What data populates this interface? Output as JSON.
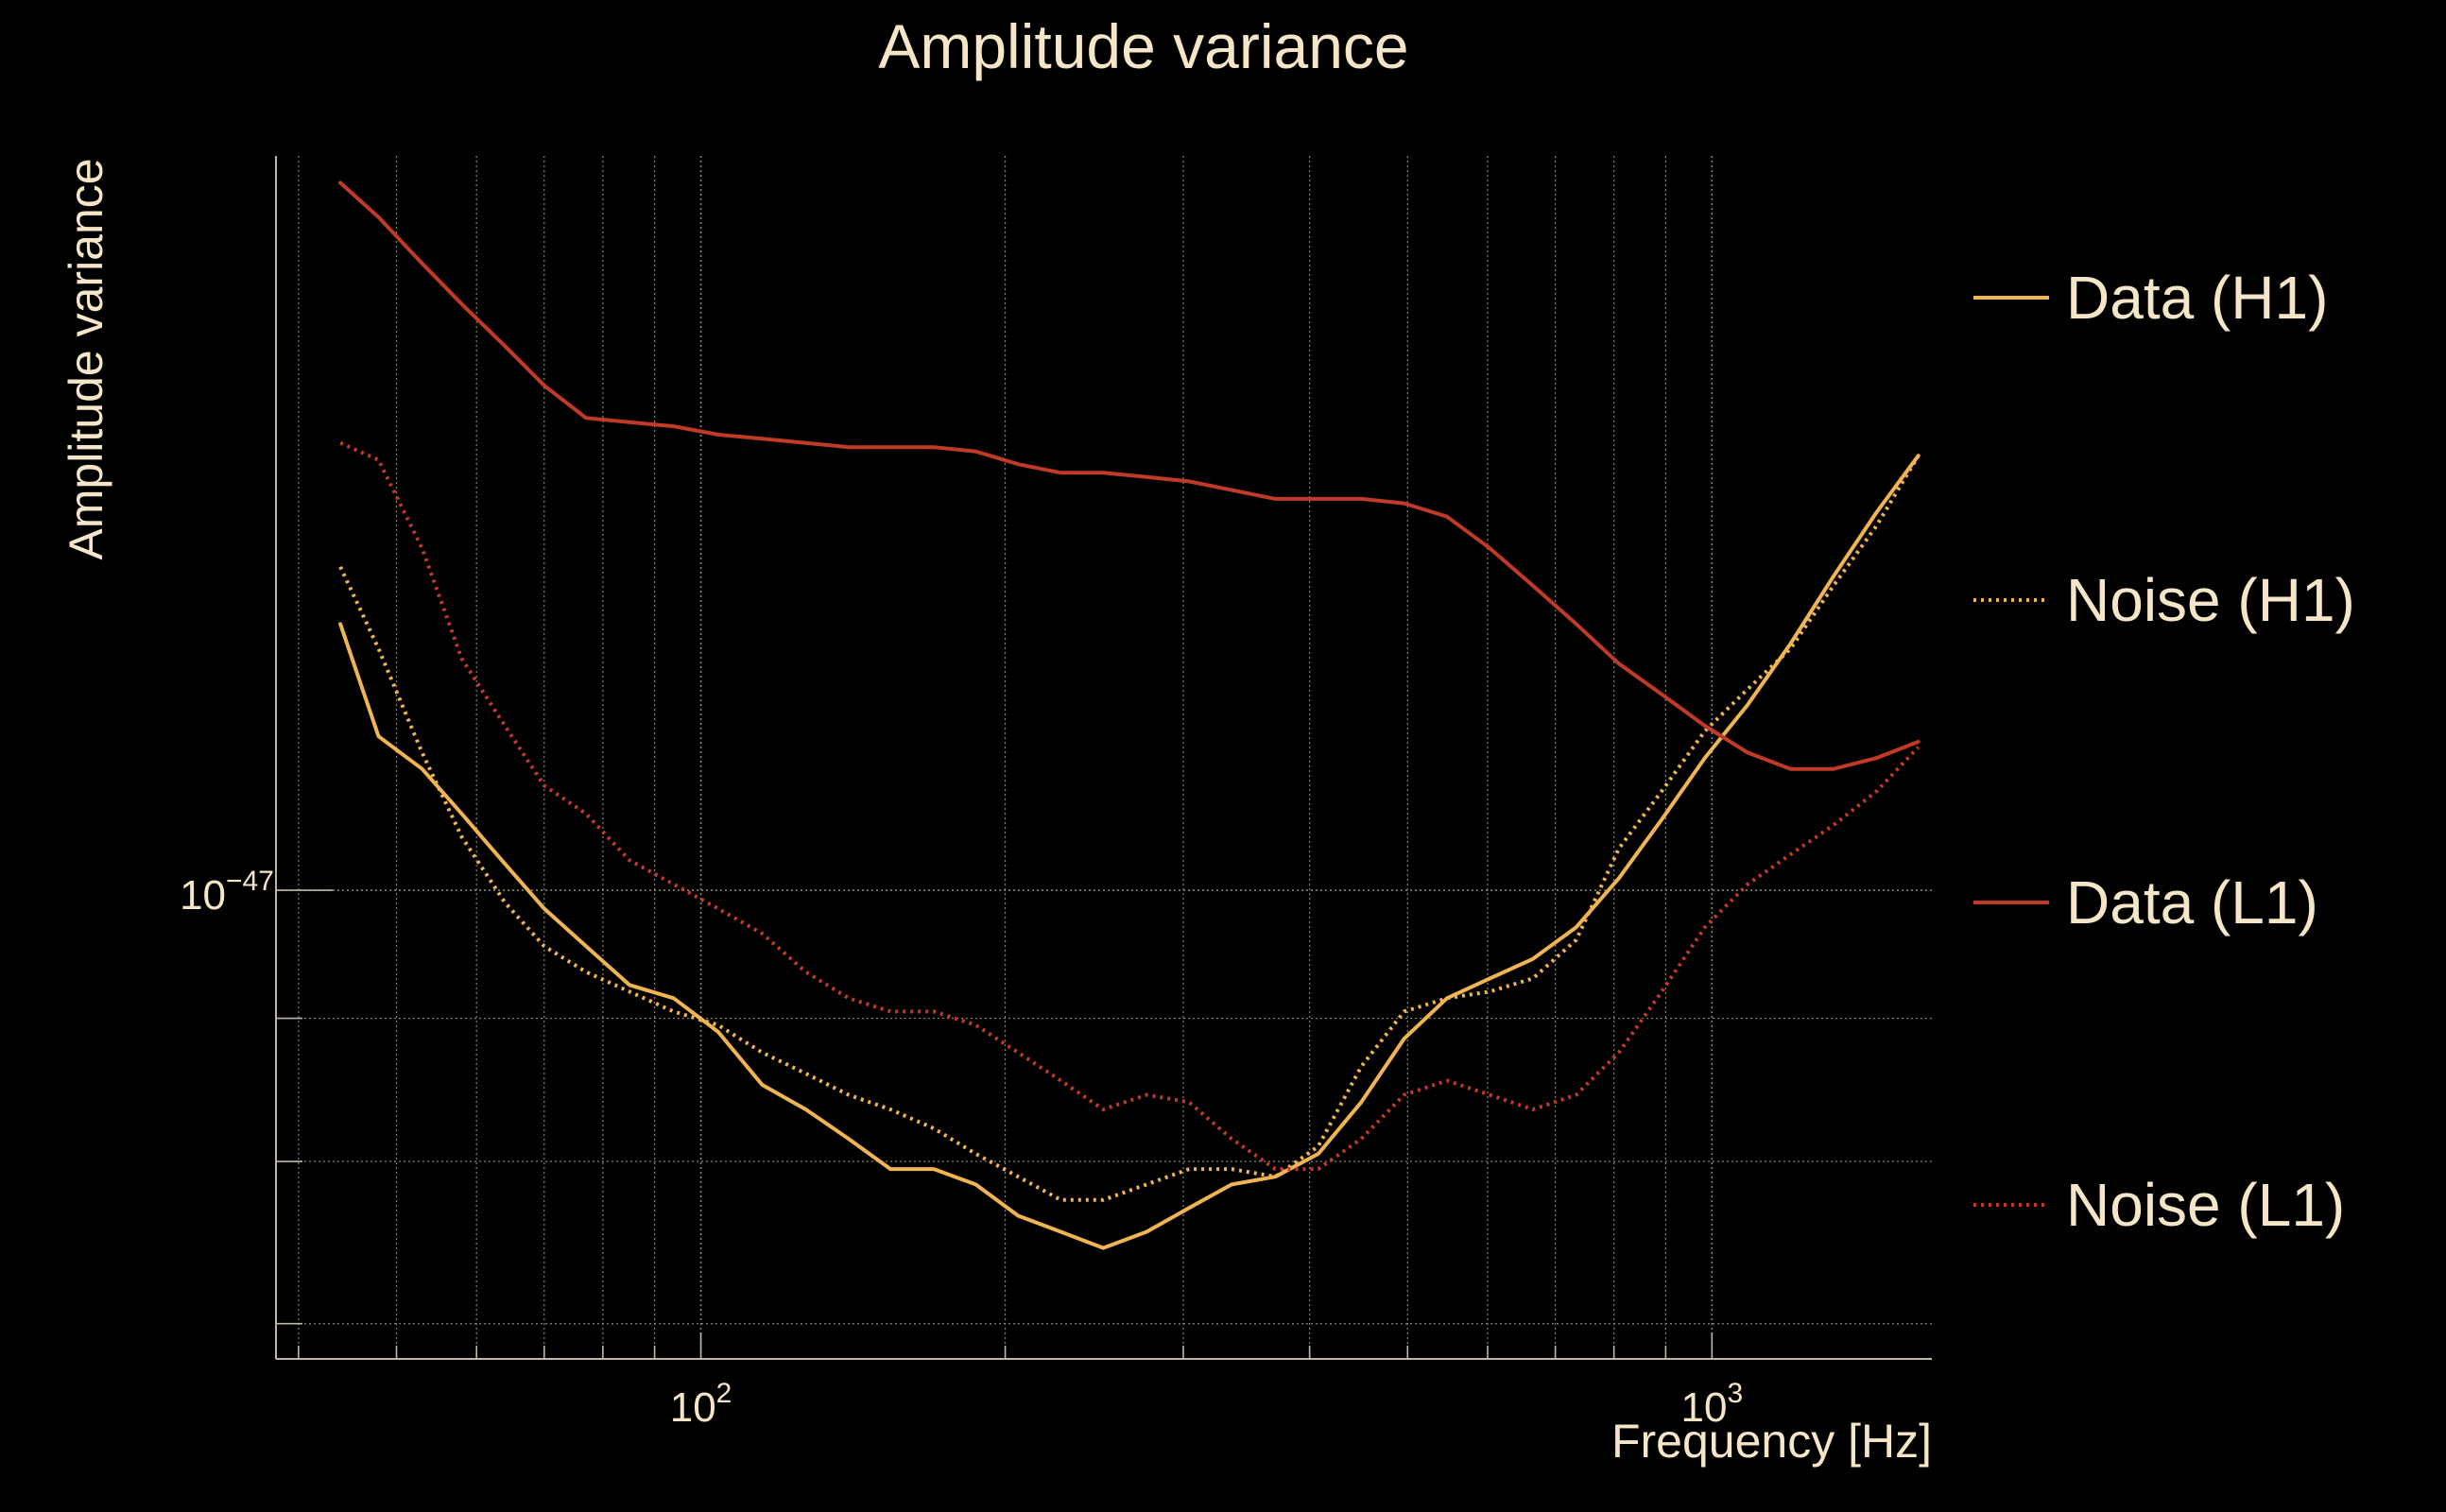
{
  "chart_data": {
    "type": "line",
    "title": "Amplitude variance",
    "xlabel": "Frequency [Hz]",
    "ylabel": "Amplitude variance",
    "xscale": "log",
    "yscale": "log",
    "xlim": [
      38,
      1650
    ],
    "ylim": [
      6.8e-48,
      1.83e-47
    ],
    "x_ticks": [
      {
        "value": 100,
        "base": "10",
        "exp": "2"
      },
      {
        "value": 1000,
        "base": "10",
        "exp": "3"
      }
    ],
    "y_ticks": [
      {
        "value": 1e-47,
        "base": "10",
        "exp": "−47"
      }
    ],
    "grid": true,
    "legend_position": "right",
    "series": [
      {
        "name": "Data (H1)",
        "color": "#f0b552",
        "style": "solid",
        "x": [
          44,
          48,
          53,
          58,
          64,
          70,
          77,
          85,
          94,
          104,
          115,
          127,
          140,
          154,
          170,
          187,
          206,
          227,
          250,
          276,
          304,
          335,
          370,
          408,
          450,
          496,
          547,
          603,
          665,
          734,
          809,
          892,
          984,
          1085,
          1196,
          1319,
          1455,
          1600
        ],
        "y": [
          1.245e-47,
          1.135e-47,
          1.105e-47,
          1.065e-47,
          1.022e-47,
          9.85e-48,
          9.55e-48,
          9.25e-48,
          9.15e-48,
          8.9e-48,
          8.52e-48,
          8.35e-48,
          8.15e-48,
          7.95e-48,
          7.95e-48,
          7.85e-48,
          7.65e-48,
          7.55e-48,
          7.45e-48,
          7.55e-48,
          7.7e-48,
          7.85e-48,
          7.9e-48,
          8.05e-48,
          8.4e-48,
          8.85e-48,
          9.15e-48,
          9.3e-48,
          9.45e-48,
          9.7e-48,
          1.01e-47,
          1.06e-47,
          1.115e-47,
          1.165e-47,
          1.225e-47,
          1.295e-47,
          1.365e-47,
          1.43e-47
        ]
      },
      {
        "name": "Noise (H1)",
        "color": "#f0b552",
        "style": "dotted",
        "x": [
          44,
          48,
          53,
          58,
          64,
          70,
          77,
          85,
          94,
          104,
          115,
          127,
          140,
          154,
          170,
          187,
          206,
          227,
          250,
          276,
          304,
          335,
          370,
          408,
          450,
          496,
          547,
          603,
          665,
          734,
          809,
          892,
          984,
          1085,
          1196,
          1319,
          1455,
          1600
        ],
        "y": [
          1.305e-47,
          1.22e-47,
          1.12e-47,
          1.045e-47,
          9.9e-48,
          9.55e-48,
          9.35e-48,
          9.2e-48,
          9.05e-48,
          8.95e-48,
          8.75e-48,
          8.6e-48,
          8.45e-48,
          8.35e-48,
          8.22e-48,
          8.05e-48,
          7.9e-48,
          7.75e-48,
          7.75e-48,
          7.85e-48,
          7.95e-48,
          7.95e-48,
          7.9e-48,
          8.1e-48,
          8.65e-48,
          9.05e-48,
          9.15e-48,
          9.2e-48,
          9.3e-48,
          9.6e-48,
          1.035e-47,
          1.085e-47,
          1.14e-47,
          1.18e-47,
          1.22e-47,
          1.285e-47,
          1.35e-47,
          1.43e-47
        ]
      },
      {
        "name": "Data (L1)",
        "color": "#c13a28",
        "style": "solid",
        "x": [
          44,
          48,
          53,
          58,
          64,
          70,
          77,
          85,
          94,
          104,
          115,
          127,
          140,
          154,
          170,
          187,
          206,
          227,
          250,
          276,
          304,
          335,
          370,
          408,
          450,
          496,
          547,
          603,
          665,
          734,
          809,
          892,
          984,
          1085,
          1196,
          1319,
          1455,
          1600
        ],
        "y": [
          1.79e-47,
          1.74e-47,
          1.675e-47,
          1.62e-47,
          1.565e-47,
          1.515e-47,
          1.475e-47,
          1.47e-47,
          1.465e-47,
          1.455e-47,
          1.45e-47,
          1.445e-47,
          1.44e-47,
          1.44e-47,
          1.44e-47,
          1.435e-47,
          1.42e-47,
          1.41e-47,
          1.41e-47,
          1.405e-47,
          1.4e-47,
          1.39e-47,
          1.38e-47,
          1.38e-47,
          1.38e-47,
          1.375e-47,
          1.36e-47,
          1.325e-47,
          1.285e-47,
          1.245e-47,
          1.205e-47,
          1.175e-47,
          1.145e-47,
          1.12e-47,
          1.105e-47,
          1.105e-47,
          1.115e-47,
          1.13e-47
        ]
      },
      {
        "name": "Noise (L1)",
        "color": "#c13a28",
        "style": "dotted",
        "x": [
          44,
          48,
          53,
          58,
          64,
          70,
          77,
          85,
          94,
          104,
          115,
          127,
          140,
          154,
          170,
          187,
          206,
          227,
          250,
          276,
          304,
          335,
          370,
          408,
          450,
          496,
          547,
          603,
          665,
          734,
          809,
          892,
          984,
          1085,
          1196,
          1319,
          1455,
          1600
        ],
        "y": [
          1.445e-47,
          1.425e-47,
          1.325e-47,
          1.21e-47,
          1.145e-47,
          1.09e-47,
          1.065e-47,
          1.025e-47,
          1.005e-47,
          9.85e-48,
          9.65e-48,
          9.35e-48,
          9.15e-48,
          9.05e-48,
          9.05e-48,
          8.95e-48,
          8.75e-48,
          8.55e-48,
          8.35e-48,
          8.45e-48,
          8.4e-48,
          8.15e-48,
          7.95e-48,
          7.95e-48,
          8.15e-48,
          8.45e-48,
          8.55e-48,
          8.45e-48,
          8.35e-48,
          8.45e-48,
          8.75e-48,
          9.2e-48,
          9.7e-48,
          1.005e-47,
          1.03e-47,
          1.055e-47,
          1.085e-47,
          1.125e-47
        ]
      }
    ]
  }
}
